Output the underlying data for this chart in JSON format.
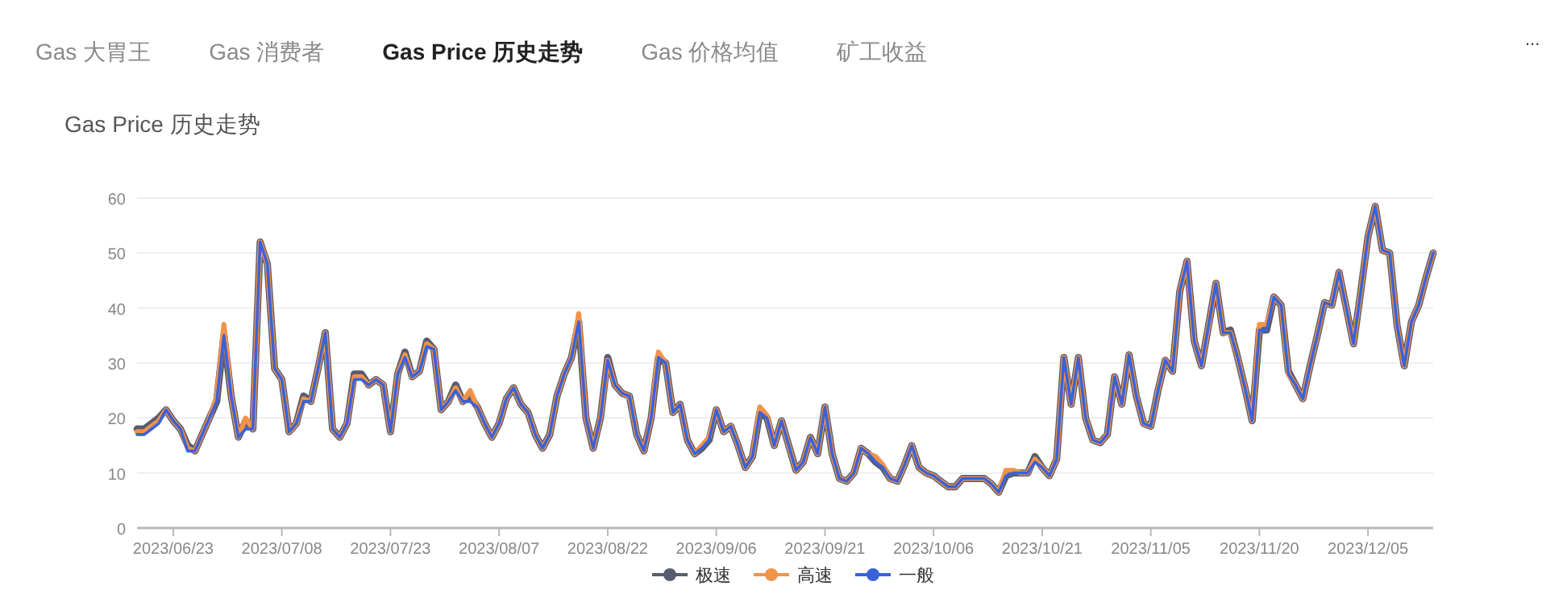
{
  "chart_data": {
    "type": "line",
    "title": "Gas Price 历史走势",
    "annotations": [
      "Gas 大胃王",
      "Gas 消费者",
      "Gas Price 历史走势",
      "Gas 价格均值",
      "矿工收益",
      "..."
    ],
    "x": [
      "2023-06-18",
      "2023-06-19",
      "2023-06-20",
      "2023-06-21",
      "2023-06-22",
      "2023-06-23",
      "2023-06-24",
      "2023-06-25",
      "2023-06-26",
      "2023-06-27",
      "2023-06-28",
      "2023-06-29",
      "2023-06-30",
      "2023-07-01",
      "2023-07-02",
      "2023-07-03",
      "2023-07-04",
      "2023-07-05",
      "2023-07-06",
      "2023-07-07",
      "2023-07-08",
      "2023-07-09",
      "2023-07-10",
      "2023-07-11",
      "2023-07-12",
      "2023-07-13",
      "2023-07-14",
      "2023-07-15",
      "2023-07-16",
      "2023-07-17",
      "2023-07-18",
      "2023-07-19",
      "2023-07-20",
      "2023-07-21",
      "2023-07-22",
      "2023-07-23",
      "2023-07-24",
      "2023-07-25",
      "2023-07-26",
      "2023-07-27",
      "2023-07-28",
      "2023-07-29",
      "2023-07-30",
      "2023-07-31",
      "2023-08-01",
      "2023-08-02",
      "2023-08-03",
      "2023-08-04",
      "2023-08-05",
      "2023-08-06",
      "2023-08-07",
      "2023-08-08",
      "2023-08-09",
      "2023-08-10",
      "2023-08-11",
      "2023-08-12",
      "2023-08-13",
      "2023-08-14",
      "2023-08-15",
      "2023-08-16",
      "2023-08-17",
      "2023-08-18",
      "2023-08-19",
      "2023-08-20",
      "2023-08-21",
      "2023-08-22",
      "2023-08-23",
      "2023-08-24",
      "2023-08-25",
      "2023-08-26",
      "2023-08-27",
      "2023-08-28",
      "2023-08-29",
      "2023-08-30",
      "2023-08-31",
      "2023-09-01",
      "2023-09-02",
      "2023-09-03",
      "2023-09-04",
      "2023-09-05",
      "2023-09-06",
      "2023-09-07",
      "2023-09-08",
      "2023-09-09",
      "2023-09-10",
      "2023-09-11",
      "2023-09-12",
      "2023-09-13",
      "2023-09-14",
      "2023-09-15",
      "2023-09-16",
      "2023-09-17",
      "2023-09-18",
      "2023-09-19",
      "2023-09-20",
      "2023-09-21",
      "2023-09-22",
      "2023-09-23",
      "2023-09-24",
      "2023-09-25",
      "2023-09-26",
      "2023-09-27",
      "2023-09-28",
      "2023-09-29",
      "2023-09-30",
      "2023-10-01",
      "2023-10-02",
      "2023-10-03",
      "2023-10-04",
      "2023-10-05",
      "2023-10-06",
      "2023-10-07",
      "2023-10-08",
      "2023-10-09",
      "2023-10-10",
      "2023-10-11",
      "2023-10-12",
      "2023-10-13",
      "2023-10-14",
      "2023-10-15",
      "2023-10-16",
      "2023-10-17",
      "2023-10-18",
      "2023-10-19",
      "2023-10-20",
      "2023-10-21",
      "2023-10-22",
      "2023-10-23",
      "2023-10-24",
      "2023-10-25",
      "2023-10-26",
      "2023-10-27",
      "2023-10-28",
      "2023-10-29",
      "2023-10-30",
      "2023-10-31",
      "2023-11-01",
      "2023-11-02",
      "2023-11-03",
      "2023-11-04",
      "2023-11-05",
      "2023-11-06",
      "2023-11-07",
      "2023-11-08",
      "2023-11-09",
      "2023-11-10",
      "2023-11-11",
      "2023-11-12",
      "2023-11-13",
      "2023-11-14",
      "2023-11-15",
      "2023-11-16",
      "2023-11-17",
      "2023-11-18",
      "2023-11-19",
      "2023-11-20",
      "2023-11-21",
      "2023-11-22",
      "2023-11-23",
      "2023-11-24",
      "2023-11-25",
      "2023-11-26",
      "2023-11-27",
      "2023-11-28",
      "2023-11-29",
      "2023-11-30",
      "2023-12-01",
      "2023-12-02",
      "2023-12-03",
      "2023-12-04",
      "2023-12-05",
      "2023-12-06",
      "2023-12-07",
      "2023-12-08",
      "2023-12-09",
      "2023-12-10",
      "2023-12-11",
      "2023-12-12",
      "2023-12-13",
      "2023-12-14"
    ],
    "xlim": [
      "2023-06-18",
      "2023-12-14"
    ],
    "xticks": [
      {
        "value": "2023-06-23",
        "label": "2023/06/23"
      },
      {
        "value": "2023-07-08",
        "label": "2023/07/08"
      },
      {
        "value": "2023-07-23",
        "label": "2023/07/23"
      },
      {
        "value": "2023-08-07",
        "label": "2023/08/07"
      },
      {
        "value": "2023-08-22",
        "label": "2023/08/22"
      },
      {
        "value": "2023-09-06",
        "label": "2023/09/06"
      },
      {
        "value": "2023-09-21",
        "label": "2023/09/21"
      },
      {
        "value": "2023-10-06",
        "label": "2023/10/06"
      },
      {
        "value": "2023-10-21",
        "label": "2023/10/21"
      },
      {
        "value": "2023-11-05",
        "label": "2023/11/05"
      },
      {
        "value": "2023-11-20",
        "label": "2023/11/20"
      },
      {
        "value": "2023-12-05",
        "label": "2023/12/05"
      }
    ],
    "ylim": [
      0,
      60
    ],
    "yticks": [
      0,
      10,
      20,
      30,
      40,
      50,
      60
    ],
    "grid": "y",
    "legend": "bottom",
    "series": [
      {
        "name": "极速",
        "color": "#575c70",
        "values": [
          18,
          18,
          19,
          20,
          21.5,
          19.5,
          18,
          15,
          14,
          17,
          20,
          23,
          35,
          24,
          16.5,
          19.5,
          18,
          52,
          48,
          29,
          27,
          17.5,
          19,
          24,
          23,
          29,
          35.5,
          18,
          16.5,
          19,
          28,
          28,
          26,
          27,
          26,
          17.5,
          28,
          32,
          27.5,
          28.5,
          34,
          32.5,
          21.5,
          23,
          26,
          23,
          24,
          22,
          19,
          16.5,
          19,
          23.5,
          25.5,
          22.5,
          21,
          17,
          14.5,
          17,
          24,
          28,
          31,
          37.5,
          20,
          14.5,
          20,
          31,
          26,
          24.5,
          24,
          17,
          14,
          20,
          31,
          30,
          21,
          22.5,
          16,
          13.5,
          14.5,
          16,
          21.5,
          17.5,
          18.5,
          15,
          11,
          13,
          21,
          20,
          15,
          19.5,
          15,
          10.5,
          12,
          16.5,
          13.5,
          22,
          13.5,
          9,
          8.5,
          10,
          14.5,
          13.5,
          12,
          11,
          9,
          8.5,
          11.5,
          15,
          11,
          10,
          9.5,
          8.5,
          7.5,
          7.5,
          9,
          9,
          9,
          9,
          8,
          6.5,
          9.5,
          10,
          10,
          10,
          13,
          11,
          9.5,
          12.5,
          31,
          22.5,
          31,
          20,
          16,
          15.5,
          17,
          27.5,
          22.5,
          31.5,
          24,
          19,
          18.5,
          25,
          30.5,
          28.5,
          43,
          48.5,
          34,
          29.5,
          37,
          44.5,
          35.5,
          36,
          31,
          25.5,
          19.5,
          36,
          36,
          42,
          40.5,
          28.5,
          26,
          23.5,
          29.5,
          35,
          41,
          40.5,
          46.5,
          40,
          33.5,
          43,
          53,
          58.5,
          50.5,
          50,
          37,
          29.5,
          37.5,
          40.5,
          45.5,
          50
        ]
      },
      {
        "name": "高速",
        "color": "#f2934a",
        "values": [
          17.5,
          17.5,
          18.5,
          19.5,
          21.5,
          19.5,
          18,
          14.5,
          14,
          17,
          20,
          24,
          37,
          24,
          16.5,
          20,
          18,
          52,
          48,
          29,
          27,
          17.5,
          19,
          23.5,
          23,
          29,
          35.5,
          18,
          16.5,
          19,
          27.5,
          27.5,
          26,
          27,
          26,
          17.5,
          28,
          31.5,
          27.5,
          28.5,
          33.5,
          32.5,
          21.5,
          23,
          25.5,
          23,
          25,
          22,
          19,
          16.5,
          19,
          23.5,
          25.5,
          22.5,
          21,
          17,
          14.5,
          17,
          24,
          28,
          31,
          39,
          20,
          14.5,
          20,
          30.5,
          26,
          24.5,
          24,
          17,
          14,
          20,
          32,
          30,
          21,
          22.5,
          16,
          13.5,
          15,
          16.5,
          21.5,
          17.5,
          18.5,
          15,
          11,
          13,
          22,
          20.5,
          15,
          19.5,
          15,
          10.5,
          12,
          16.5,
          13.5,
          22,
          13.5,
          9,
          8.5,
          10,
          14.5,
          13.5,
          13,
          11.5,
          9,
          8.5,
          11.5,
          15,
          11,
          10,
          9.5,
          8.5,
          7.5,
          7.5,
          9,
          9,
          9,
          9,
          8,
          6.5,
          10.5,
          10.5,
          10,
          10,
          12.5,
          11,
          9.5,
          12.5,
          31,
          22.5,
          31,
          20,
          16,
          15.5,
          17,
          27.5,
          22.5,
          31.5,
          24,
          19,
          18.5,
          25,
          30.5,
          28.5,
          43,
          48.5,
          34,
          29.5,
          37,
          44.5,
          35.5,
          35.5,
          31,
          25.5,
          19.5,
          37,
          37,
          42,
          40.5,
          28,
          26,
          23.5,
          29.5,
          35,
          41,
          40.5,
          46.5,
          40,
          33.5,
          43,
          53,
          58.5,
          50.5,
          50,
          37,
          29.5,
          37.5,
          40.5,
          45.5,
          50
        ]
      },
      {
        "name": "一般",
        "color": "#3a62d8",
        "values": [
          17,
          17,
          18,
          19,
          21.5,
          19.5,
          18,
          14,
          14,
          17,
          20,
          23,
          35,
          24,
          16.5,
          18,
          18,
          52,
          48,
          29,
          27,
          17.5,
          19,
          23,
          23,
          29,
          35.5,
          18,
          16.5,
          19,
          27,
          27,
          26,
          27,
          26,
          17.5,
          28,
          31,
          27.5,
          28.5,
          33,
          32.5,
          21.5,
          23,
          25,
          23,
          23,
          22,
          19,
          16.5,
          19,
          23.5,
          25.5,
          22.5,
          21,
          17,
          14.5,
          17,
          24,
          28,
          31,
          37.5,
          20,
          14.5,
          20,
          30.5,
          26,
          24.5,
          24,
          17,
          14,
          20,
          31,
          30,
          21,
          22.5,
          16,
          13.5,
          14.5,
          16,
          21.5,
          17.5,
          18.5,
          15,
          11,
          13,
          21,
          20,
          15,
          19.5,
          15,
          10.5,
          12,
          16.5,
          13.5,
          22,
          13.5,
          9,
          8.5,
          10,
          14.5,
          13.5,
          12,
          11,
          9,
          8.5,
          11.5,
          15,
          11,
          10,
          9.5,
          8.5,
          7.5,
          7.5,
          9,
          9,
          9,
          9,
          8,
          6.5,
          9.5,
          10,
          10,
          10,
          12,
          11,
          9.5,
          12.5,
          31,
          22.5,
          31,
          20,
          16,
          15.5,
          17,
          27.5,
          22.5,
          31.5,
          24,
          19,
          18.5,
          25,
          30.5,
          28.5,
          43,
          48.5,
          34,
          29.5,
          37,
          44.5,
          35.5,
          35.5,
          31,
          25.5,
          19.5,
          36,
          36,
          42,
          40.5,
          28,
          26,
          23.5,
          29.5,
          35,
          41,
          40.5,
          46.5,
          40,
          33.5,
          43,
          53,
          58.5,
          50.5,
          50,
          37,
          29.5,
          37.5,
          40.5,
          45.5,
          50
        ]
      }
    ]
  }
}
